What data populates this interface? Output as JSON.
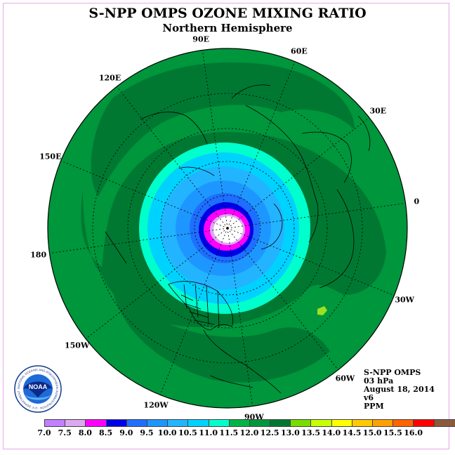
{
  "header": {
    "title": "S-NPP OMPS OZONE MIXING RATIO",
    "subtitle": "Northern Hemisphere"
  },
  "longitude_labels": [
    {
      "text": "90E",
      "deg": 90
    },
    {
      "text": "60E",
      "deg": 60
    },
    {
      "text": "30E",
      "deg": 30
    },
    {
      "text": "0",
      "deg": 0
    },
    {
      "text": "30W",
      "deg": -30
    },
    {
      "text": "60W",
      "deg": -60
    },
    {
      "text": "90W",
      "deg": -90
    },
    {
      "text": "120W",
      "deg": -120
    },
    {
      "text": "150W",
      "deg": -150
    },
    {
      "text": "180",
      "deg": 180
    },
    {
      "text": "150E",
      "deg": 150
    },
    {
      "text": "120E",
      "deg": 120
    }
  ],
  "info": {
    "line1": "S-NPP OMPS",
    "line2": "03 hPa",
    "line3": "August 18, 2014",
    "line4": "v6",
    "line5": "PPM"
  },
  "logo": {
    "text": "NOAA",
    "ring_text": "NATIONAL OCEANIC AND ATMOSPHERIC ADMINISTRATION · U.S. DEPARTMENT OF COMMERCE"
  },
  "legend": {
    "colors": [
      "#c080ff",
      "#dca8f0",
      "#ff00ff",
      "#0000e6",
      "#1e6eff",
      "#1e96ff",
      "#22b4ff",
      "#00d2ff",
      "#00ffcc",
      "#00b446",
      "#00963c",
      "#007832",
      "#78dc00",
      "#c8ff00",
      "#ffff00",
      "#ffc800",
      "#ffa000",
      "#ff6400",
      "#ff0000",
      "#8b5a3c"
    ],
    "ticks": [
      "7.0",
      "7.5",
      "8.0",
      "8.5",
      "9.0",
      "9.5",
      "10.0",
      "10.5",
      "11.0",
      "11.5",
      "12.0",
      "12.5",
      "13.0",
      "13.5",
      "14.0",
      "14.5",
      "15.0",
      "15.5",
      "16.0"
    ]
  },
  "map": {
    "projection": "north-polar-stereographic",
    "field_colors": {
      "outer": "#00963c",
      "dark": "#007832",
      "aqua": "#00ffcc",
      "cyan": "#00d2ff",
      "lightblue": "#22b4ff",
      "blue": "#1e96ff",
      "mid": "#1e6eff",
      "navy": "#0000e6",
      "magenta": "#ff00ff",
      "pink": "#dca8f0",
      "pole": "#ffffff",
      "patch": "#9ce020"
    }
  }
}
